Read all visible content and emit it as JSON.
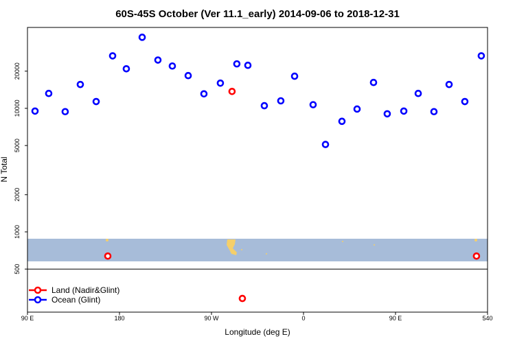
{
  "chart_data": {
    "type": "scatter",
    "title": "60S-45S October (Ver 11.1_early)   2014-09-06 to 2018-12-31",
    "x_label": "Longitude (deg E)",
    "y_label": "N Total",
    "xlim": [
      90,
      540
    ],
    "ylim": [
      224,
      45170
    ],
    "log_y": true,
    "xticks": [
      {
        "value": 90,
        "label": "90 E"
      },
      180,
      {
        "value": 270,
        "label": "90 W"
      },
      {
        "value": 360,
        "label": "0"
      },
      {
        "value": 450,
        "label": "90 E"
      },
      540
    ],
    "yticks": [
      500,
      1000,
      2000,
      5000,
      10000,
      20000
    ],
    "legend": "bottom-left",
    "series": [
      {
        "name": "Land (Nadir&Glint)",
        "color": "#ff0000",
        "x": [
          290.1,
          168.6,
          529.2,
          300.2
        ],
        "values": [
          13700,
          637,
          637,
          289
        ]
      },
      {
        "name": "Ocean (Glint)",
        "color": "#0000ff",
        "x": [
          97.4,
          110.8,
          126.9,
          141.7,
          157.2,
          173.3,
          186.7,
          202.2,
          217.6,
          231.7,
          247.2,
          262.6,
          278.7,
          294.8,
          305.6,
          321.7,
          337.8,
          351.3,
          369.4,
          381.5,
          397.6,
          412.4,
          428.5,
          441.9,
          458.1,
          472.2,
          487.6,
          502.4,
          517.8,
          533.9
        ],
        "values": [
          9500,
          13200,
          9400,
          15600,
          11350,
          26600,
          20900,
          37600,
          24600,
          22000,
          18400,
          13100,
          16000,
          22900,
          22300,
          10500,
          11500,
          18200,
          10700,
          5100,
          7850,
          9870,
          16200,
          9030,
          9500,
          13200,
          9400,
          15600,
          11350,
          26600
        ]
      }
    ]
  }
}
